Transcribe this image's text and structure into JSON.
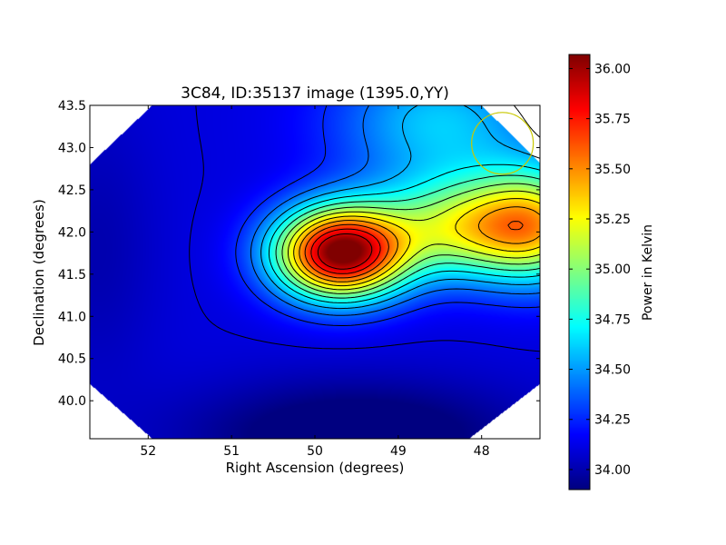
{
  "chart_data": {
    "type": "heatmap",
    "title": "3C84, ID:35137 image (1395.0,YY)",
    "xlabel": "Right Ascension (degrees)",
    "ylabel": "Declination (degrees)",
    "xlim": [
      52.7,
      47.3
    ],
    "ylim": [
      39.55,
      43.5
    ],
    "x_reversed": true,
    "x_ticks": [
      52,
      51,
      50,
      49,
      48
    ],
    "x_tick_labels": [
      "52",
      "51",
      "50",
      "49",
      "48"
    ],
    "y_ticks": [
      40.0,
      40.5,
      41.0,
      41.5,
      42.0,
      42.5,
      43.0,
      43.5
    ],
    "y_tick_labels": [
      "40.0",
      "40.5",
      "41.0",
      "41.5",
      "42.0",
      "42.5",
      "43.0",
      "43.5"
    ],
    "colorbar": {
      "label": "Power in Kelvin",
      "range": [
        33.9,
        36.07
      ],
      "ticks": [
        34.0,
        34.25,
        34.5,
        34.75,
        35.0,
        35.25,
        35.5,
        35.75,
        36.0
      ],
      "tick_labels": [
        "34.00",
        "34.25",
        "34.50",
        "34.75",
        "35.00",
        "35.25",
        "35.50",
        "35.75",
        "36.00"
      ],
      "colormap": "jet"
    },
    "field_components": {
      "baseline_k": 34.1,
      "peak": {
        "ra": 49.7,
        "dec": 41.75,
        "amplitude_k": 1.95
      },
      "ridge": {
        "ra": 48.0,
        "dec": 42.05,
        "amplitude_k": 1.1
      },
      "ridge_ext": {
        "ra": 47.3,
        "dec": 42.1,
        "amplitude_k": 0.6
      },
      "north_band": {
        "ra": 48.5,
        "dec": 43.3,
        "amplitude_k": 0.5
      },
      "cold_region": {
        "ra": 49.5,
        "dec": 39.6,
        "amplitude_k": -0.3
      },
      "west_cool": {
        "ra": 52.6,
        "dec": 41.8,
        "amplitude_k": -0.1
      }
    },
    "contour_levels": [
      34.1,
      34.25,
      34.4,
      34.55,
      34.7,
      34.85,
      35.0,
      35.15,
      35.3,
      35.45,
      35.6,
      35.75,
      35.9
    ],
    "beam_marker": {
      "ra": 47.75,
      "dec": 43.05,
      "radius_deg": 0.37,
      "color": "#c8c800"
    },
    "grid": false,
    "legend": "none"
  }
}
